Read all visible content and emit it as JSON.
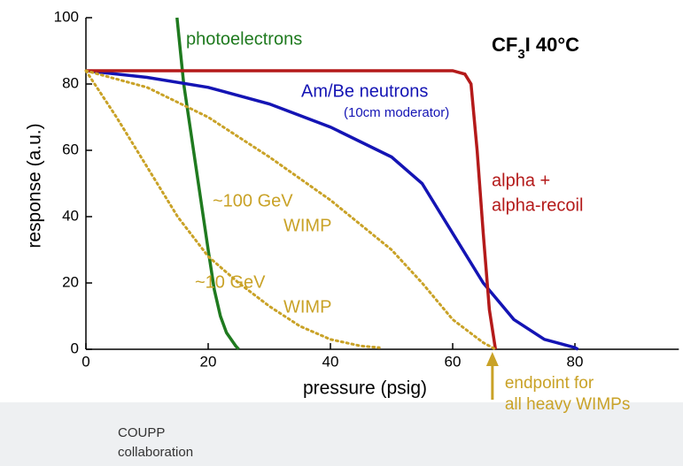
{
  "chart_data": {
    "type": "line",
    "title": [
      "CF",
      "3",
      "I  40°C"
    ],
    "xlabel": "pressure (psig)",
    "ylabel": "response (a.u.)",
    "xlim": [
      0,
      97
    ],
    "ylim": [
      0,
      100
    ],
    "xticks": [
      0,
      20,
      40,
      60,
      80
    ],
    "yticks": [
      0,
      20,
      40,
      60,
      80,
      100
    ],
    "grid": false,
    "series": [
      {
        "name": [
          "photoelectrons"
        ],
        "color": "#1f7a1f",
        "style": "solid",
        "x": [
          14.9,
          16,
          18,
          20,
          21,
          22,
          23,
          24.5,
          25
        ],
        "values": [
          100,
          80,
          55,
          30,
          18,
          10,
          5,
          1,
          0
        ]
      },
      {
        "name": [
          "Am/Be neutrons"
        ],
        "color": "#1414b4",
        "style": "solid",
        "x": [
          0,
          10,
          20,
          30,
          40,
          50,
          55,
          60,
          65,
          70,
          75,
          80,
          80.5
        ],
        "values": [
          84,
          82,
          79,
          74,
          67,
          58,
          50,
          35,
          20,
          9,
          3,
          0.5,
          0
        ]
      },
      {
        "name": [
          "alpha +",
          "alpha-recoil"
        ],
        "color": "#b41a1a",
        "style": "solid",
        "x": [
          0,
          60,
          62,
          63,
          64,
          65,
          66,
          67
        ],
        "values": [
          84,
          84,
          83,
          80,
          60,
          35,
          12,
          0
        ]
      },
      {
        "name": [
          "~100 GeV",
          "WIMP"
        ],
        "color": "#c9a227",
        "style": "dotted",
        "x": [
          0,
          10,
          20,
          30,
          40,
          50,
          55,
          60,
          65,
          67
        ],
        "values": [
          84,
          79,
          70,
          58,
          45,
          30,
          20,
          9,
          2,
          0
        ]
      },
      {
        "name": [
          "~10 GeV",
          "WIMP"
        ],
        "color": "#c9a227",
        "style": "dotted",
        "x": [
          0,
          5,
          10,
          15,
          20,
          25,
          30,
          35,
          40,
          45,
          48
        ],
        "values": [
          84,
          70,
          55,
          40,
          28,
          20,
          13,
          7,
          3,
          1,
          0.5
        ]
      }
    ],
    "annotations": [
      "(10cm moderator)",
      "endpoint  for",
      "all heavy WIMPs"
    ],
    "endpoint": 66.5,
    "footer": [
      "COUPP",
      "collaboration"
    ]
  }
}
